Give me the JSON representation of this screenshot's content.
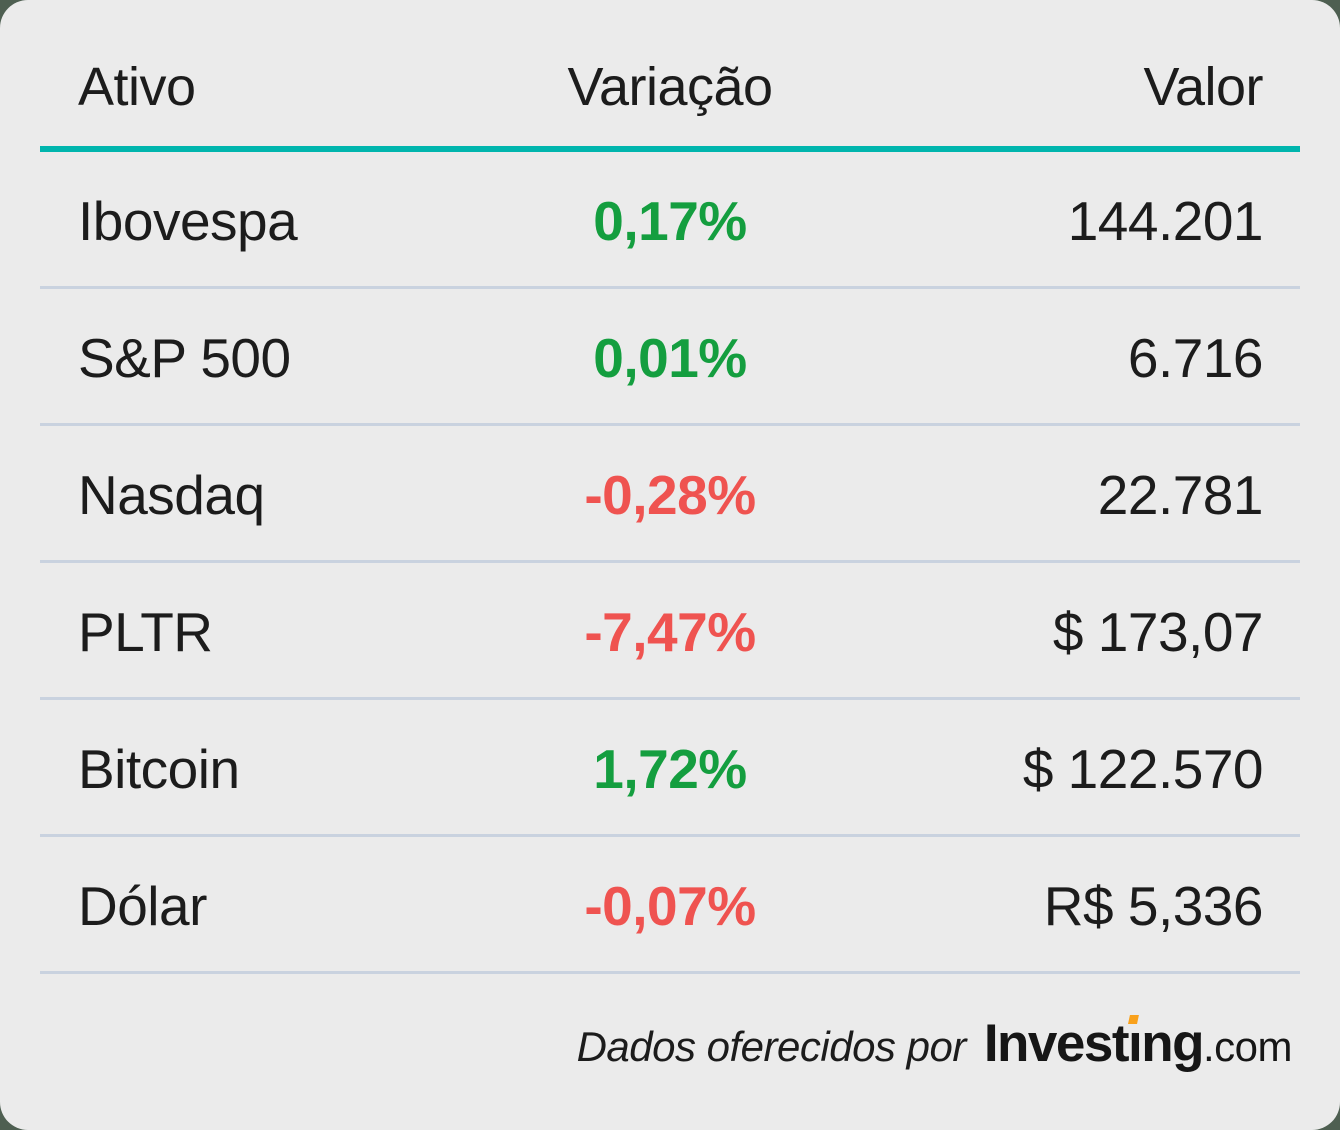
{
  "colors": {
    "card_background": "#ebebeb",
    "header_rule_teal": "#00b5ad",
    "row_divider": "#c9d2df",
    "positive_green": "#149e3f",
    "negative_red": "#ef5350",
    "logo_dot_orange": "#f9a11b",
    "text_ink": "#1c1c1c"
  },
  "table": {
    "headers": {
      "asset": "Ativo",
      "change": "Variação",
      "value": "Valor"
    },
    "rows": [
      {
        "asset": "Ibovespa",
        "change": "0,17%",
        "direction": "up",
        "value": "144.201"
      },
      {
        "asset": "S&P 500",
        "change": "0,01%",
        "direction": "up",
        "value": "6.716"
      },
      {
        "asset": "Nasdaq",
        "change": "-0,28%",
        "direction": "down",
        "value": "22.781"
      },
      {
        "asset": "PLTR",
        "change": "-7,47%",
        "direction": "down",
        "value": "$ 173,07"
      },
      {
        "asset": "Bitcoin",
        "change": "1,72%",
        "direction": "up",
        "value": "$ 122.570"
      },
      {
        "asset": "Dólar",
        "change": "-0,07%",
        "direction": "down",
        "value": "R$ 5,336"
      }
    ]
  },
  "footer": {
    "credit_text": "Dados oferecidos por",
    "logo_text": "Investing",
    "logo_tld": ".com"
  }
}
